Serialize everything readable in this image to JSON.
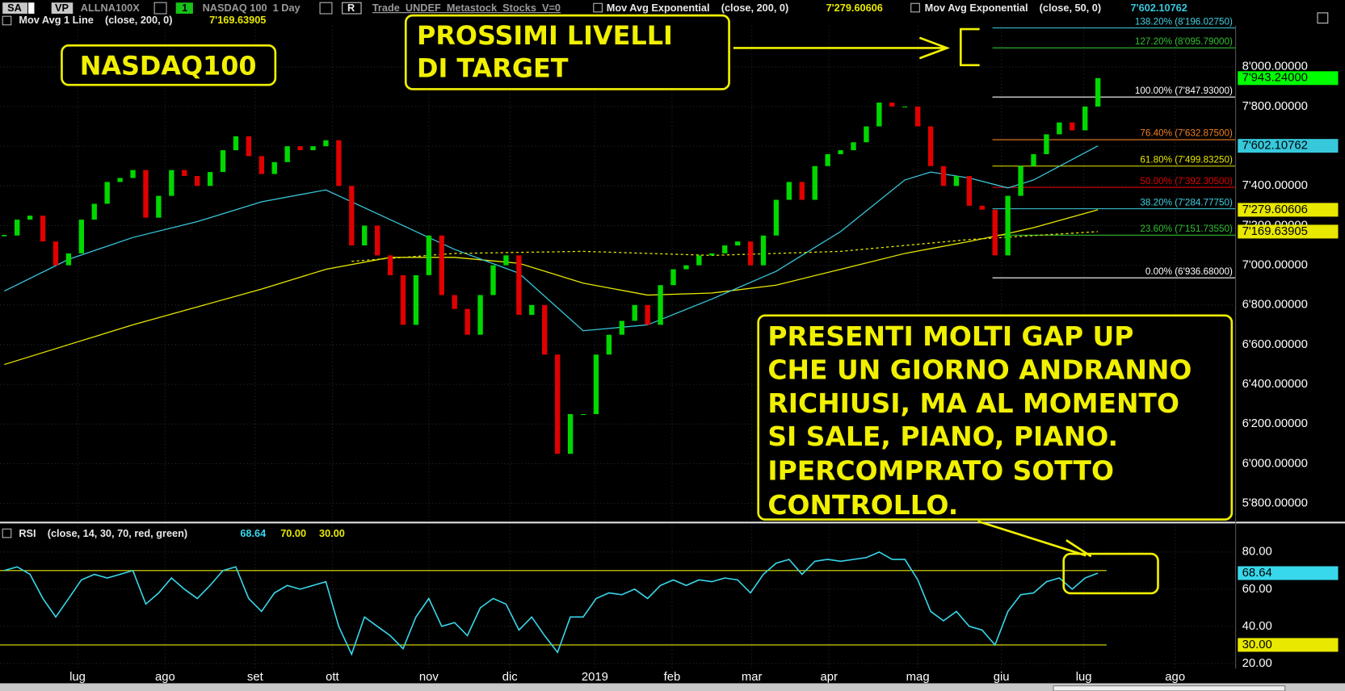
{
  "toolbar": {
    "sa": "SA",
    "vp": "VP",
    "symbol": "ALLNA100X",
    "one": "1",
    "instrument": "NASDAQ 100  1 Day",
    "r": "R",
    "info": "Trade  UNDEF  Metastock  Stocks  V=0"
  },
  "chart_data": [
    {
      "type": "candlestick",
      "x": [
        0,
        1,
        2,
        3,
        4,
        5,
        6,
        7,
        8,
        9,
        10,
        11,
        12,
        13,
        14,
        15,
        16,
        17,
        18,
        19,
        20,
        21,
        22,
        23,
        24,
        25,
        26,
        27,
        28,
        29,
        30,
        31,
        32,
        33,
        34,
        35,
        36,
        37,
        38,
        39,
        40,
        41,
        42,
        43,
        44,
        45,
        46,
        47,
        48,
        49,
        50,
        51,
        52,
        53,
        54,
        55,
        56,
        57,
        58,
        59,
        60,
        61,
        62,
        63,
        64,
        65,
        66,
        67,
        68,
        69,
        70,
        71,
        72,
        73,
        74,
        75,
        76,
        77,
        78,
        79,
        80,
        81,
        82,
        83,
        84,
        85
      ],
      "close": [
        7150,
        7230,
        7250,
        7120,
        7000,
        7060,
        7230,
        7310,
        7420,
        7440,
        7480,
        7240,
        7350,
        7480,
        7450,
        7400,
        7470,
        7580,
        7650,
        7550,
        7460,
        7520,
        7600,
        7580,
        7600,
        7630,
        7400,
        7100,
        7200,
        7050,
        6950,
        6700,
        6950,
        7150,
        6850,
        6780,
        6650,
        6850,
        7000,
        7050,
        6750,
        6800,
        6550,
        6050,
        6250,
        6250,
        6550,
        6650,
        6720,
        6800,
        6700,
        6900,
        6980,
        7000,
        7050,
        7060,
        7100,
        7120,
        7000,
        7150,
        7330,
        7420,
        7330,
        7500,
        7560,
        7580,
        7620,
        7700,
        7820,
        7800,
        7800,
        7700,
        7500,
        7400,
        7450,
        7300,
        7280,
        7050,
        7350,
        7500,
        7560,
        7660,
        7720,
        7680,
        7800,
        7943.24
      ],
      "color_up": "#00d800",
      "color_down": "#e00000",
      "last": {
        "value": 7943.24,
        "label": "7'943.24000",
        "color": "#00ff00"
      },
      "series": [
        {
          "name": "Mov Avg Exponential    (close, 200, 0)",
          "color": "#e8e800",
          "x": [
            0,
            5,
            10,
            15,
            20,
            25,
            30,
            35,
            40,
            45,
            50,
            55,
            60,
            65,
            70,
            75,
            78,
            80,
            85
          ],
          "values": [
            6500,
            6600,
            6700,
            6790,
            6880,
            6980,
            7040,
            7040,
            7010,
            6910,
            6850,
            6860,
            6900,
            6980,
            7060,
            7120,
            7160,
            7190,
            7279.60606
          ],
          "last": {
            "value": 7279.60606,
            "label": "7'279.60606"
          }
        },
        {
          "name": "Mov Avg Exponential    (close, 50, 0)",
          "color": "#38c8dc",
          "x": [
            0,
            5,
            10,
            15,
            20,
            25,
            30,
            35,
            40,
            45,
            50,
            55,
            60,
            65,
            70,
            72,
            75,
            78,
            80,
            85
          ],
          "values": [
            6870,
            7030,
            7140,
            7220,
            7320,
            7380,
            7230,
            7080,
            6960,
            6670,
            6700,
            6830,
            6970,
            7170,
            7430,
            7470,
            7440,
            7390,
            7430,
            7602.10762
          ],
          "last": {
            "value": 7602.10762,
            "label": "7'602.10762"
          }
        },
        {
          "name": "Mov Avg 1 Line    (close, 200, 0)",
          "color": "#e8e800",
          "dashed": true,
          "x": [
            27,
            35,
            45,
            55,
            65,
            75,
            85
          ],
          "values": [
            7020,
            7060,
            7070,
            7050,
            7070,
            7130,
            7169.63905
          ],
          "last": {
            "value": 7169.63905,
            "label": "7'169.63905"
          }
        }
      ],
      "fib_levels": [
        {
          "value": 8196.0275,
          "label": "138.20% (8'196.02750)",
          "color": "#40d0e0"
        },
        {
          "value": 8095.79,
          "label": "127.20% (8'095.79000)",
          "color": "#30c030"
        },
        {
          "value": 7847.93,
          "label": "100.00% (7'847.93000)",
          "color": "#ffffff"
        },
        {
          "value": 7632.875,
          "label": "76.40% (7'632.87500)",
          "color": "#f08020"
        },
        {
          "value": 7499.8325,
          "label": "61.80% (7'499.83250)",
          "color": "#e8e800"
        },
        {
          "value": 7392.305,
          "label": "50.00% (7'392.30500)",
          "color": "#e00000"
        },
        {
          "value": 7284.7775,
          "label": "38.20% (7'284.77750)",
          "color": "#40d0e0"
        },
        {
          "value": 7151.7355,
          "label": "23.60% (7'151.73550)",
          "color": "#30c030"
        },
        {
          "value": 6936.68,
          "label": "0.00% (6'936.68000)",
          "color": "#ffffff"
        }
      ],
      "xlim": [
        -0.33,
        95.67
      ],
      "xticks": [
        {
          "value": 5.7,
          "label": "lug"
        },
        {
          "value": 12.5,
          "label": "ago"
        },
        {
          "value": 19.5,
          "label": "set"
        },
        {
          "value": 25.5,
          "label": "ott"
        },
        {
          "value": 33,
          "label": "nov"
        },
        {
          "value": 39.3,
          "label": "dic"
        },
        {
          "value": 45.9,
          "label": "2019"
        },
        {
          "value": 51.9,
          "label": "feb"
        },
        {
          "value": 58.1,
          "label": "mar"
        },
        {
          "value": 64.1,
          "label": "apr"
        },
        {
          "value": 71,
          "label": "mag"
        },
        {
          "value": 77.5,
          "label": "giu"
        },
        {
          "value": 83.9,
          "label": "lug"
        },
        {
          "value": 91,
          "label": "ago"
        }
      ],
      "ylim": [
        5710,
        8337
      ],
      "yticks": [
        {
          "value": 5800,
          "label": "5'800.00000"
        },
        {
          "value": 6000,
          "label": "6'000.00000"
        },
        {
          "value": 6200,
          "label": "6'200.00000"
        },
        {
          "value": 6400,
          "label": "6'400.00000"
        },
        {
          "value": 6600,
          "label": "6'600.00000"
        },
        {
          "value": 6800,
          "label": "6'800.00000"
        },
        {
          "value": 7000,
          "label": "7'000.00000"
        },
        {
          "value": 7200,
          "label": "7'200.00000"
        },
        {
          "value": 7400,
          "label": "7'400.00000"
        },
        {
          "value": 7600,
          "label": "7'600.00000"
        },
        {
          "value": 7800,
          "label": "7'800.00000"
        },
        {
          "value": 8000,
          "label": "8'000.00000"
        }
      ],
      "annotations": [
        {
          "lines": [
            "NASDAQ100"
          ]
        },
        {
          "lines": [
            "PROSSIMI LIVELLI",
            "DI TARGET"
          ]
        },
        {
          "lines": [
            "PRESENTI MOLTI GAP UP",
            "CHE UN GIORNO ANDRANNO",
            "RICHIUSI, MA AL MOMENTO",
            "SI SALE, PIANO, PIANO.",
            "IPERCOMPRATO SOTTO",
            "CONTROLLO."
          ]
        }
      ]
    },
    {
      "type": "line",
      "name": "RSI    (close, 14, 30, 70, red, green)",
      "color": "#38d8ec",
      "x": [
        0,
        1,
        2,
        3,
        4,
        5,
        6,
        7,
        8,
        9,
        10,
        11,
        12,
        13,
        14,
        15,
        16,
        17,
        18,
        19,
        20,
        21,
        22,
        23,
        24,
        25,
        26,
        27,
        28,
        29,
        30,
        31,
        32,
        33,
        34,
        35,
        36,
        37,
        38,
        39,
        40,
        41,
        42,
        43,
        44,
        45,
        46,
        47,
        48,
        49,
        50,
        51,
        52,
        53,
        54,
        55,
        56,
        57,
        58,
        59,
        60,
        61,
        62,
        63,
        64,
        65,
        66,
        67,
        68,
        69,
        70,
        71,
        72,
        73,
        74,
        75,
        76,
        77,
        78,
        79,
        80,
        81,
        82,
        83,
        84,
        85
      ],
      "values": [
        70,
        72,
        68,
        55,
        45,
        55,
        65,
        68,
        66,
        68,
        70,
        52,
        58,
        66,
        60,
        55,
        62,
        70,
        72,
        55,
        48,
        58,
        62,
        60,
        62,
        64,
        40,
        25,
        45,
        40,
        35,
        28,
        45,
        55,
        40,
        42,
        35,
        50,
        55,
        52,
        38,
        45,
        35,
        26,
        45,
        45,
        55,
        58,
        57,
        60,
        55,
        62,
        65,
        62,
        65,
        64,
        66,
        65,
        58,
        68,
        74,
        76,
        68,
        75,
        76,
        75,
        76,
        77,
        80,
        76,
        76,
        65,
        48,
        43,
        48,
        40,
        38,
        30,
        48,
        57,
        58,
        64,
        66,
        60,
        66,
        68.64
      ],
      "last": {
        "value": 68.64,
        "label": "68.64"
      },
      "levels": [
        {
          "value": 70,
          "label": "70.00",
          "color": "#e8e800"
        },
        {
          "value": 30,
          "label": "30.00",
          "color": "#e8e800"
        }
      ],
      "ylim": [
        17.2,
        94.7
      ],
      "yticks": [
        {
          "value": 20,
          "label": "20.00"
        },
        {
          "value": 40,
          "label": "40.00"
        },
        {
          "value": 60,
          "label": "60.00"
        },
        {
          "value": 80,
          "label": "80.00"
        }
      ]
    }
  ]
}
